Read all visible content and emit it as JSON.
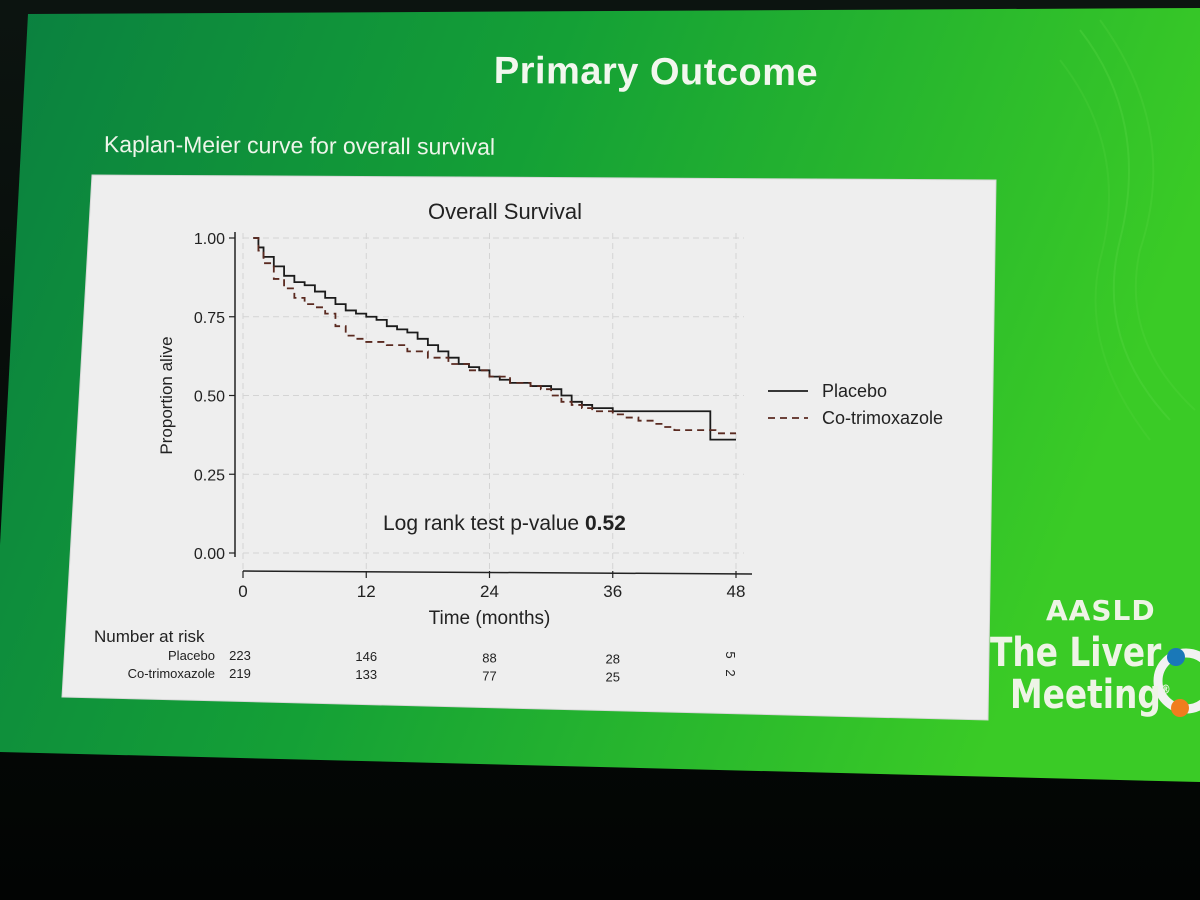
{
  "slide": {
    "title": "Primary Outcome",
    "subtitle": "Kaplan-Meier curve for overall survival",
    "brand": {
      "org": "AASLD",
      "line1": "The Liver",
      "line2": "Meeting",
      "registered": "®"
    },
    "colors": {
      "green_dark": "#0a8a3a",
      "green_light": "#2cc22a",
      "panel": "#eeeeee",
      "curve": "#1b1b1b",
      "curve_dashed": "#5a2a20"
    }
  },
  "chart_data": {
    "type": "line",
    "title": "Overall Survival",
    "xlabel": "Time (months)",
    "ylabel": "Proportion alive",
    "xlim": [
      0,
      48
    ],
    "ylim": [
      0,
      1
    ],
    "xticks": [
      0,
      12,
      24,
      36,
      48
    ],
    "xtick_labels": [
      "0",
      "12",
      "24",
      "36",
      "48"
    ],
    "yticks": [
      0,
      0.25,
      0.5,
      0.75,
      1
    ],
    "ytick_labels": [
      "0.00",
      "0.25",
      "0.50",
      "0.75",
      "1.00"
    ],
    "grid": true,
    "legend_position": "right",
    "step": true,
    "series": [
      {
        "name": "Placebo",
        "style": "solid",
        "points": [
          [
            1,
            1.0
          ],
          [
            1.5,
            0.97
          ],
          [
            2,
            0.94
          ],
          [
            3,
            0.91
          ],
          [
            4,
            0.88
          ],
          [
            5,
            0.86
          ],
          [
            6,
            0.85
          ],
          [
            7,
            0.83
          ],
          [
            8,
            0.81
          ],
          [
            9,
            0.79
          ],
          [
            10,
            0.77
          ],
          [
            11,
            0.76
          ],
          [
            12,
            0.75
          ],
          [
            13,
            0.74
          ],
          [
            14,
            0.72
          ],
          [
            15,
            0.71
          ],
          [
            16,
            0.7
          ],
          [
            17,
            0.68
          ],
          [
            18,
            0.66
          ],
          [
            19,
            0.64
          ],
          [
            20,
            0.62
          ],
          [
            21,
            0.6
          ],
          [
            22,
            0.59
          ],
          [
            23,
            0.58
          ],
          [
            24,
            0.56
          ],
          [
            25,
            0.55
          ],
          [
            26,
            0.54
          ],
          [
            27,
            0.54
          ],
          [
            28,
            0.53
          ],
          [
            29,
            0.53
          ],
          [
            30,
            0.52
          ],
          [
            31,
            0.5
          ],
          [
            32,
            0.48
          ],
          [
            33,
            0.47
          ],
          [
            34,
            0.46
          ],
          [
            35,
            0.46
          ],
          [
            36,
            0.45
          ],
          [
            37,
            0.45
          ],
          [
            38,
            0.45
          ],
          [
            39,
            0.45
          ],
          [
            40,
            0.45
          ],
          [
            41,
            0.45
          ],
          [
            42,
            0.45
          ],
          [
            43,
            0.45
          ],
          [
            44,
            0.45
          ],
          [
            45.5,
            0.45
          ],
          [
            45.5,
            0.36
          ],
          [
            48,
            0.36
          ]
        ]
      },
      {
        "name": "Co-trimoxazole",
        "style": "dashed",
        "points": [
          [
            1,
            1.0
          ],
          [
            1.5,
            0.96
          ],
          [
            2,
            0.92
          ],
          [
            3,
            0.87
          ],
          [
            4,
            0.84
          ],
          [
            5,
            0.81
          ],
          [
            6,
            0.79
          ],
          [
            7,
            0.78
          ],
          [
            8,
            0.76
          ],
          [
            9,
            0.72
          ],
          [
            10,
            0.69
          ],
          [
            11,
            0.68
          ],
          [
            12,
            0.67
          ],
          [
            14,
            0.66
          ],
          [
            16,
            0.64
          ],
          [
            18,
            0.62
          ],
          [
            20,
            0.6
          ],
          [
            22,
            0.58
          ],
          [
            24,
            0.56
          ],
          [
            26,
            0.54
          ],
          [
            28,
            0.53
          ],
          [
            29,
            0.52
          ],
          [
            30,
            0.5
          ],
          [
            31,
            0.48
          ],
          [
            32,
            0.47
          ],
          [
            33,
            0.46
          ],
          [
            34,
            0.45
          ],
          [
            35,
            0.45
          ],
          [
            36,
            0.44
          ],
          [
            37,
            0.43
          ],
          [
            38,
            0.43
          ],
          [
            38.5,
            0.42
          ],
          [
            40,
            0.41
          ],
          [
            41,
            0.4
          ],
          [
            42,
            0.39
          ],
          [
            44,
            0.39
          ],
          [
            45.5,
            0.39
          ],
          [
            46,
            0.38
          ],
          [
            48,
            0.38
          ]
        ]
      }
    ],
    "annotation": {
      "text": "Log rank test p-value ",
      "value": "0.52"
    },
    "risk_table": {
      "heading": "Number at risk",
      "times": [
        0,
        12,
        24,
        36,
        48
      ],
      "rows": [
        {
          "label": "Placebo",
          "counts": [
            "223",
            "146",
            "88",
            "28",
            "5"
          ]
        },
        {
          "label": "Co-trimoxazole",
          "counts": [
            "219",
            "133",
            "77",
            "25",
            "2"
          ]
        }
      ]
    }
  }
}
